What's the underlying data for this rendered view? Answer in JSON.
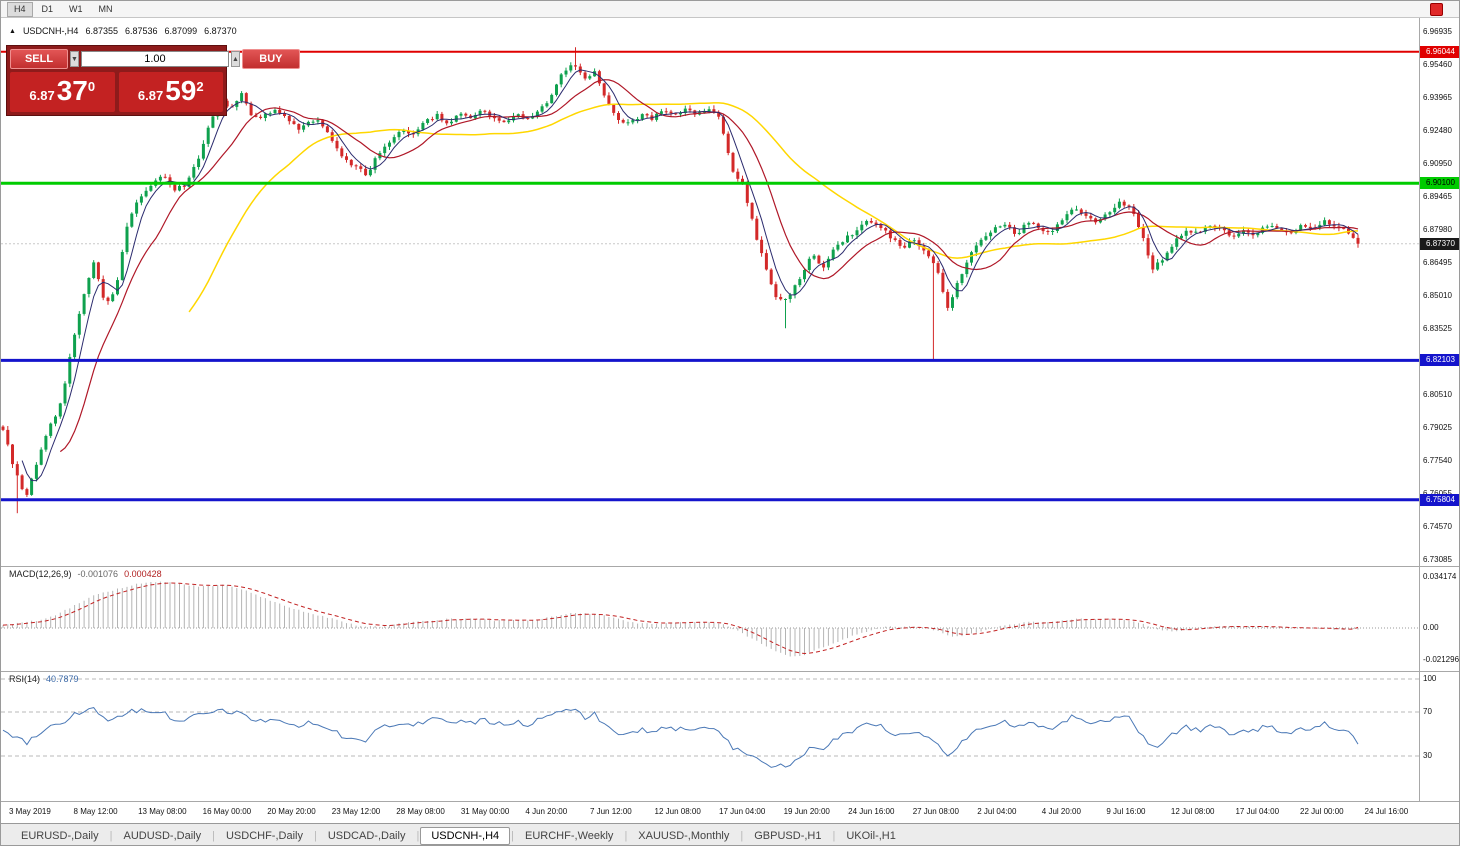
{
  "toolbar": {
    "timeframes": [
      "H4",
      "D1",
      "W1",
      "MN"
    ],
    "active": "H4"
  },
  "chart_header": {
    "direction_arrow": "▲",
    "symbol": "USDCNH-,H4",
    "open": "6.87355",
    "high": "6.87536",
    "low": "6.87099",
    "close": "6.87370"
  },
  "trade_panel": {
    "sell_label": "SELL",
    "buy_label": "BUY",
    "volume": "1.00",
    "spin_down": "▼",
    "spin_up": "▲",
    "sell_price": {
      "main": "6.87",
      "big": "37",
      "sup": "0"
    },
    "buy_price": {
      "main": "6.87",
      "big": "59",
      "sup": "2"
    }
  },
  "price_axis": {
    "labels": [
      "6.96935",
      "6.95460",
      "6.93965",
      "6.92480",
      "6.90950",
      "6.89465",
      "6.87980",
      "6.86495",
      "6.85010",
      "6.83525",
      "6.82040",
      "6.80510",
      "6.79025",
      "6.77540",
      "6.76055",
      "6.74570",
      "6.73085"
    ]
  },
  "current_price": {
    "label": "6.87370"
  },
  "macd_panel": {
    "name": "MACD(12,26,9)",
    "value_main": "-0.001076",
    "value_signal": "0.000428"
  },
  "rsi_panel": {
    "name": "RSI(14)",
    "value": "40.7879"
  },
  "time_axis": {
    "labels": [
      "3 May 2019",
      "8 May 12:00",
      "13 May 08:00",
      "16 May 00:00",
      "20 May 20:00",
      "23 May 12:00",
      "28 May 08:00",
      "31 May 00:00",
      "4 Jun 20:00",
      "7 Jun 12:00",
      "12 Jun 08:00",
      "17 Jun 04:00",
      "19 Jun 20:00",
      "24 Jun 16:00",
      "27 Jun 08:00",
      "2 Jul 04:00",
      "4 Jul 20:00",
      "9 Jul 16:00",
      "12 Jul 08:00",
      "17 Jul 04:00",
      "22 Jul 00:00",
      "24 Jul 16:00"
    ]
  },
  "tabs": {
    "items": [
      "EURUSD-,Daily",
      "AUDUSD-,Daily",
      "USDCHF-,Daily",
      "USDCAD-,Daily",
      "USDCNH-,H4",
      "EURCHF-,Weekly",
      "XAUUSD-,Monthly",
      "GBPUSD-,H1",
      "UKOil-,H1"
    ],
    "active_index": 4
  },
  "chart_data": [
    {
      "type": "candlestick",
      "symbol": "USDCNH",
      "timeframe": "H4",
      "x_range": [
        "3 May 2019",
        "24 Jul 16:00"
      ],
      "y_range": [
        6.73085,
        6.96935
      ],
      "ohlc_current": {
        "open": 6.87355,
        "high": 6.87536,
        "low": 6.87099,
        "close": 6.8737
      },
      "colors": {
        "up": "#0fa14e",
        "down": "#d32929"
      },
      "close_path": [
        6.79,
        6.772,
        6.758,
        6.775,
        6.79,
        6.8,
        6.825,
        6.85,
        6.865,
        6.845,
        6.855,
        6.885,
        6.895,
        6.9,
        6.905,
        6.898,
        6.9,
        6.91,
        6.925,
        6.94,
        6.935,
        6.942,
        6.93,
        6.932,
        6.934,
        6.93,
        6.926,
        6.93,
        6.928,
        6.92,
        6.912,
        6.908,
        6.905,
        6.915,
        6.92,
        6.925,
        6.923,
        6.928,
        6.932,
        6.928,
        6.932,
        6.93,
        6.934,
        6.93,
        6.928,
        6.932,
        6.93,
        6.934,
        6.938,
        6.95,
        6.956,
        6.948,
        6.952,
        6.938,
        6.93,
        6.928,
        6.932,
        6.93,
        6.934,
        6.932,
        6.934,
        6.932,
        6.934,
        6.93,
        6.908,
        6.9,
        6.88,
        6.862,
        6.848,
        6.85,
        6.858,
        6.87,
        6.862,
        6.872,
        6.876,
        6.88,
        6.884,
        6.882,
        6.876,
        6.872,
        6.876,
        6.87,
        6.862,
        6.845,
        6.858,
        6.87,
        6.876,
        6.88,
        6.882,
        6.878,
        6.884,
        6.88,
        6.878,
        6.884,
        6.89,
        6.886,
        6.884,
        6.888,
        6.892,
        6.89,
        6.878,
        6.862,
        6.868,
        6.875,
        6.88,
        6.878,
        6.882,
        6.88,
        6.876,
        6.88,
        6.878,
        6.882,
        6.88,
        6.878,
        6.882,
        6.88,
        6.884,
        6.882,
        6.88,
        6.874
      ],
      "spikes": [
        {
          "frac": 0.012,
          "low": 6.752
        },
        {
          "frac": 0.159,
          "high": 6.9465
        },
        {
          "frac": 0.423,
          "high": 6.9625
        },
        {
          "frac": 0.578,
          "low": 6.8355
        },
        {
          "frac": 0.688,
          "low": 6.8215
        }
      ],
      "overlays": [
        {
          "type": "ma",
          "period": 40,
          "color": "#ffd700",
          "width": 1.5
        },
        {
          "type": "ma",
          "period": 13,
          "color": "#b01828",
          "width": 1.2
        },
        {
          "type": "ma",
          "period": 5,
          "color": "#2b2b6e",
          "width": 1
        },
        {
          "type": "hline",
          "value": 6.96044,
          "label": "6.96044",
          "color": "#e00000",
          "width": 2,
          "text": "#ffffff"
        },
        {
          "type": "hline",
          "value": 6.901,
          "label": "6.90100",
          "color": "#00cc00",
          "width": 3,
          "text": "#000000"
        },
        {
          "type": "hline",
          "value": 6.82103,
          "label": "6.82103",
          "color": "#1414cc",
          "width": 3,
          "text": "#ffffff"
        },
        {
          "type": "hline",
          "value": 6.75804,
          "label": "6.75804",
          "color": "#1414cc",
          "width": 3,
          "text": "#ffffff"
        }
      ]
    },
    {
      "type": "bar",
      "name": "MACD(12,26,9)",
      "current": {
        "macd": -0.001076,
        "signal": 0.000428
      },
      "y_range": [
        -0.021296,
        0.034174
      ],
      "axis": [
        "0.034174",
        "0.00",
        "-0.021296"
      ],
      "values_path": [
        0.002,
        0.003,
        0.004,
        0.005,
        0.007,
        0.01,
        0.014,
        0.018,
        0.022,
        0.024,
        0.026,
        0.028,
        0.03,
        0.031,
        0.031,
        0.03,
        0.029,
        0.028,
        0.028,
        0.029,
        0.028,
        0.026,
        0.023,
        0.02,
        0.017,
        0.014,
        0.012,
        0.01,
        0.008,
        0.006,
        0.004,
        0.002,
        0.001,
        0.001,
        0.002,
        0.003,
        0.004,
        0.005,
        0.005,
        0.006,
        0.006,
        0.006,
        0.006,
        0.005,
        0.005,
        0.005,
        0.005,
        0.006,
        0.007,
        0.009,
        0.01,
        0.01,
        0.009,
        0.008,
        0.006,
        0.004,
        0.003,
        0.003,
        0.003,
        0.003,
        0.004,
        0.004,
        0.004,
        0.003,
        0.0,
        -0.004,
        -0.008,
        -0.012,
        -0.016,
        -0.019,
        -0.019,
        -0.016,
        -0.013,
        -0.01,
        -0.007,
        -0.004,
        -0.002,
        0.0,
        0.001,
        0.001,
        0.001,
        0.0,
        -0.002,
        -0.005,
        -0.006,
        -0.004,
        -0.002,
        0.0,
        0.002,
        0.003,
        0.004,
        0.004,
        0.004,
        0.005,
        0.006,
        0.006,
        0.006,
        0.006,
        0.006,
        0.005,
        0.003,
        0.0,
        -0.002,
        -0.002,
        -0.001,
        0.0,
        0.001,
        0.001,
        0.001,
        0.001,
        0.001,
        0.001,
        0.0,
        0.0,
        0.0,
        0.0,
        0.0,
        -0.001,
        -0.001,
        -0.001
      ]
    },
    {
      "type": "line",
      "name": "RSI(14)",
      "current": 40.7879,
      "y_range": [
        0,
        100
      ],
      "levels": [
        100,
        70,
        30
      ],
      "axis": [
        "100",
        "70",
        "30"
      ],
      "values_path": [
        55,
        48,
        42,
        50,
        56,
        60,
        66,
        70,
        72,
        62,
        64,
        70,
        71,
        70,
        70,
        64,
        63,
        66,
        70,
        73,
        68,
        70,
        62,
        62,
        63,
        60,
        57,
        60,
        58,
        52,
        48,
        46,
        45,
        55,
        58,
        61,
        59,
        62,
        64,
        60,
        63,
        60,
        63,
        60,
        58,
        61,
        59,
        62,
        65,
        71,
        73,
        65,
        68,
        57,
        52,
        50,
        54,
        52,
        56,
        54,
        56,
        54,
        56,
        52,
        38,
        34,
        27,
        23,
        20,
        22,
        28,
        40,
        35,
        45,
        50,
        55,
        60,
        58,
        52,
        48,
        52,
        47,
        41,
        30,
        40,
        50,
        56,
        60,
        62,
        56,
        62,
        57,
        54,
        61,
        66,
        61,
        58,
        63,
        67,
        64,
        50,
        38,
        44,
        52,
        57,
        53,
        58,
        55,
        50,
        55,
        52,
        58,
        54,
        51,
        57,
        54,
        60,
        56,
        52,
        41
      ]
    }
  ]
}
